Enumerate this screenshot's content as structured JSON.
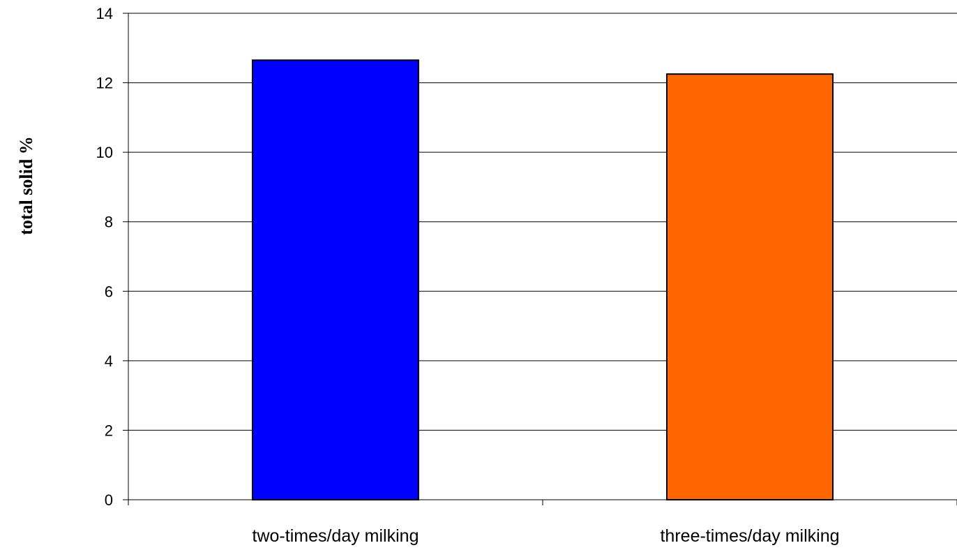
{
  "chart_data": {
    "type": "bar",
    "title": "",
    "xlabel": "",
    "ylabel": "total solid %",
    "categories": [
      "two-times/day milking",
      "three-times/day milking"
    ],
    "values": [
      12.65,
      12.25
    ],
    "colors": [
      "#0000ff",
      "#ff6600"
    ],
    "ylim": [
      0,
      14
    ],
    "yticks": [
      0,
      2,
      4,
      6,
      8,
      10,
      12,
      14
    ],
    "grid": true,
    "legend": "none"
  }
}
